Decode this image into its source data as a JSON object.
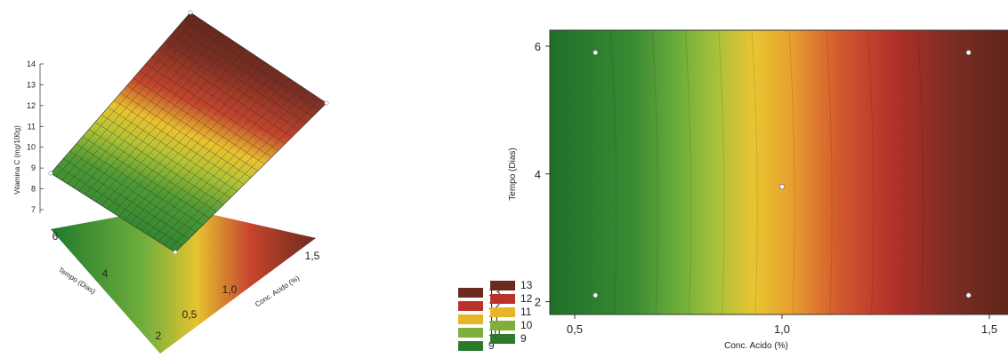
{
  "chart_data": [
    {
      "type": "surface3d",
      "zlabel": "Vitamina C (mg/100g)",
      "xlabel": "Conc. Acido (%)",
      "ylabel": "Tempo (Dias)",
      "x_ticks": [
        "0,5",
        "1,0",
        "1,5"
      ],
      "y_ticks": [
        "2",
        "4",
        "6"
      ],
      "z_ticks": [
        "7",
        "8",
        "9",
        "10",
        "11",
        "12",
        "13",
        "14"
      ],
      "xlim": [
        0.5,
        1.5
      ],
      "ylim": [
        2,
        6
      ],
      "zlim": [
        7,
        14
      ],
      "design_points": [
        {
          "x": 0.5,
          "y": 2,
          "z": 7.3
        },
        {
          "x": 0.5,
          "y": 6,
          "z": 8.8
        },
        {
          "x": 1.5,
          "y": 2,
          "z": 12.2
        },
        {
          "x": 1.5,
          "y": 6,
          "z": 14.0
        }
      ],
      "legend": [
        "13",
        "12",
        "11",
        "10",
        "9"
      ]
    },
    {
      "type": "contour",
      "xlabel": "Conc. Acido (%)",
      "ylabel": "Tempo (Dias)",
      "x_ticks": [
        "0,5",
        "1,0",
        "1,5"
      ],
      "y_ticks": [
        "2",
        "4",
        "6"
      ],
      "xlim": [
        0.44,
        1.56
      ],
      "ylim": [
        1.8,
        6.25
      ],
      "levels": [
        9,
        10,
        11,
        12,
        13
      ],
      "design_points": [
        {
          "x": 0.55,
          "y": 2.1
        },
        {
          "x": 0.55,
          "y": 5.9
        },
        {
          "x": 1.0,
          "y": 3.8
        },
        {
          "x": 1.45,
          "y": 2.1
        },
        {
          "x": 1.45,
          "y": 5.9
        }
      ],
      "legend": [
        "13",
        "12",
        "11",
        "10",
        "9"
      ]
    }
  ],
  "legend_colors": [
    "#6b2a1f",
    "#b9332c",
    "#e7b52a",
    "#7fae3b",
    "#2d7a2f"
  ]
}
